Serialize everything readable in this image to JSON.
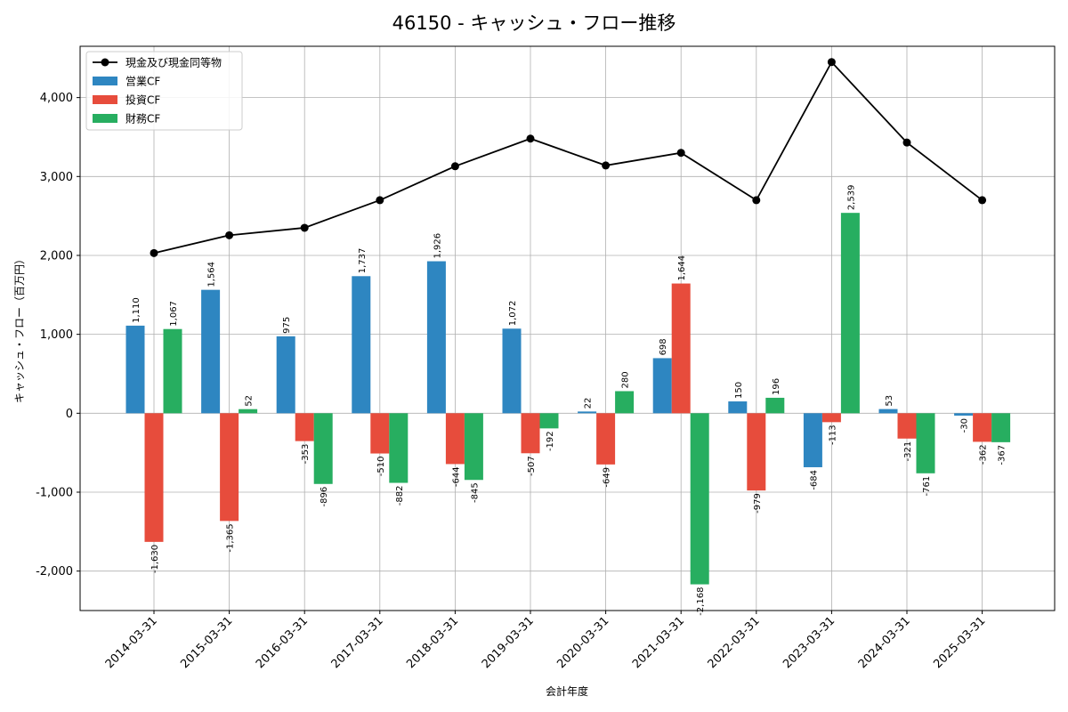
{
  "chart_data": {
    "type": "bar",
    "title": "46150 - キャッシュ・フロー推移",
    "xlabel": "会計年度",
    "ylabel": "キャッシュ・フロー（百万円）",
    "ylim": [
      -2500,
      4650
    ],
    "yticks": [
      -2000,
      -1000,
      0,
      1000,
      2000,
      3000,
      4000
    ],
    "ytick_labels": [
      "-2,000",
      "-1,000",
      "0",
      "1,000",
      "2,000",
      "3,000",
      "4,000"
    ],
    "grid": true,
    "legend_position": "top-left",
    "categories": [
      "2014-03-31",
      "2015-03-31",
      "2016-03-31",
      "2017-03-31",
      "2018-03-31",
      "2019-03-31",
      "2020-03-31",
      "2021-03-31",
      "2022-03-31",
      "2023-03-31",
      "2024-03-31",
      "2025-03-31"
    ],
    "series": [
      {
        "name": "営業CF",
        "kind": "bar",
        "color": "#2e86c1",
        "values": [
          1110,
          1564,
          975,
          1737,
          1926,
          1072,
          22,
          698,
          150,
          -684,
          53,
          -30
        ],
        "labels": [
          "1,110",
          "1,564",
          "975",
          "1,737",
          "1,926",
          "1,072",
          "22",
          "698",
          "150",
          "-684",
          "53",
          "-30"
        ]
      },
      {
        "name": "投資CF",
        "kind": "bar",
        "color": "#e74c3c",
        "values": [
          -1630,
          -1365,
          -353,
          -510,
          -644,
          -507,
          -649,
          1644,
          -979,
          -113,
          -321,
          -362
        ],
        "labels": [
          "-1,630",
          "-1,365",
          "-353",
          "-510",
          "-644",
          "-507",
          "-649",
          "1,644",
          "-979",
          "-113",
          "-321",
          "-362"
        ]
      },
      {
        "name": "財務CF",
        "kind": "bar",
        "color": "#27ae60",
        "values": [
          1067,
          52,
          -896,
          -882,
          -845,
          -192,
          280,
          -2168,
          196,
          2539,
          -761,
          -367
        ],
        "labels": [
          "1,067",
          "52",
          "-896",
          "-882",
          "-845",
          "-192",
          "280",
          "-2,168",
          "196",
          "2,539",
          "-761",
          "-367"
        ]
      },
      {
        "name": "現金及び現金同等物",
        "kind": "line",
        "color": "#000000",
        "values": [
          2030,
          2255,
          2350,
          2700,
          3130,
          3480,
          3140,
          3300,
          2700,
          4450,
          3430,
          2700
        ]
      }
    ]
  }
}
